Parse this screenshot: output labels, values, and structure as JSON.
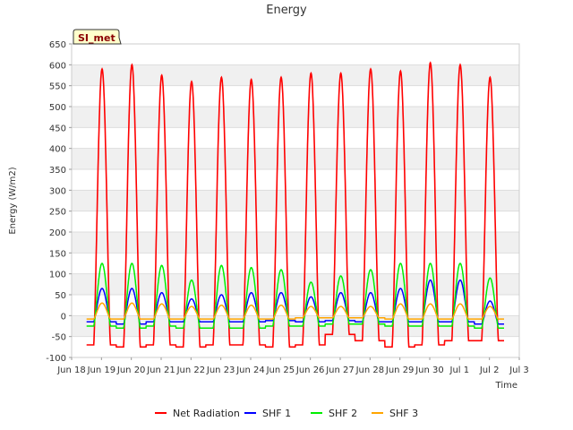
{
  "chart_data": {
    "type": "line",
    "title": "Energy",
    "xlabel": "Time",
    "ylabel": "Energy (W/m2)",
    "site_label": "SI_met",
    "ylim": [
      -100,
      650
    ],
    "yticks": [
      -100,
      -50,
      0,
      50,
      100,
      150,
      200,
      250,
      300,
      350,
      400,
      450,
      500,
      550,
      600,
      650
    ],
    "xlim": [
      0,
      15
    ],
    "xticks": [
      {
        "x": 0,
        "label": "Jun 18"
      },
      {
        "x": 1,
        "label": "Jun 19"
      },
      {
        "x": 2,
        "label": "Jun 20"
      },
      {
        "x": 3,
        "label": "Jun 21"
      },
      {
        "x": 4,
        "label": "Jun 22"
      },
      {
        "x": 5,
        "label": "Jun 23"
      },
      {
        "x": 6,
        "label": "Jun 24"
      },
      {
        "x": 7,
        "label": "Jun 25"
      },
      {
        "x": 8,
        "label": "Jun 26"
      },
      {
        "x": 9,
        "label": "Jun 27"
      },
      {
        "x": 10,
        "label": "Jun 28"
      },
      {
        "x": 11,
        "label": "Jun 29"
      },
      {
        "x": 12,
        "label": "Jun 30"
      },
      {
        "x": 13,
        "label": "Jul 1"
      },
      {
        "x": 14,
        "label": "Jul 2"
      },
      {
        "x": 15,
        "label": "Jul 3"
      }
    ],
    "grid": true,
    "legend_position": "bottom",
    "days_start": 0.5,
    "series": [
      {
        "name": "Net Radiation",
        "color": "#ff0000",
        "peaks": [
          590,
          600,
          575,
          560,
          570,
          565,
          570,
          580,
          580,
          590,
          585,
          605,
          600,
          570
        ],
        "night": [
          -70,
          -75,
          -70,
          -75,
          -70,
          -70,
          -75,
          -70,
          -45,
          -60,
          -75,
          -70,
          -60,
          -60
        ]
      },
      {
        "name": "SHF 1",
        "color": "#0000ff",
        "peaks": [
          65,
          65,
          55,
          40,
          50,
          55,
          55,
          45,
          55,
          55,
          65,
          85,
          85,
          35
        ],
        "night": [
          -15,
          -20,
          -15,
          -15,
          -15,
          -15,
          -12,
          -15,
          -12,
          -15,
          -15,
          -15,
          -15,
          -20
        ]
      },
      {
        "name": "SHF 2",
        "color": "#00ee00",
        "peaks": [
          125,
          125,
          120,
          85,
          120,
          115,
          110,
          80,
          95,
          110,
          125,
          125,
          125,
          90
        ],
        "night": [
          -25,
          -30,
          -25,
          -30,
          -30,
          -30,
          -25,
          -25,
          -20,
          -20,
          -25,
          -25,
          -25,
          -30
        ]
      },
      {
        "name": "SHF 3",
        "color": "#ffa500",
        "peaks": [
          30,
          30,
          28,
          22,
          25,
          25,
          25,
          22,
          22,
          22,
          28,
          28,
          28,
          22
        ],
        "night": [
          -8,
          -8,
          -8,
          -8,
          -8,
          -8,
          -8,
          -5,
          -5,
          -5,
          -8,
          -8,
          -8,
          -8
        ]
      }
    ]
  }
}
